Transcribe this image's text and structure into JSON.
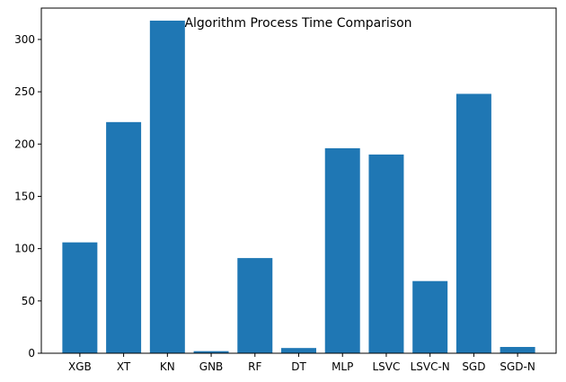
{
  "chart_data": {
    "type": "bar",
    "title": "Algorithm Process Time Comparison",
    "xlabel": "",
    "ylabel": "",
    "categories": [
      "XGB",
      "XT",
      "KN",
      "GNB",
      "RF",
      "DT",
      "MLP",
      "LSVC",
      "LSVC-N",
      "SGD",
      "SGD-N"
    ],
    "values": [
      106,
      221,
      318,
      2,
      91,
      5,
      196,
      190,
      69,
      248,
      6
    ],
    "ylim": [
      0,
      330
    ],
    "yticks": [
      0,
      50,
      100,
      150,
      200,
      250,
      300
    ],
    "grid": false,
    "bar_color": "#1f77b4"
  }
}
